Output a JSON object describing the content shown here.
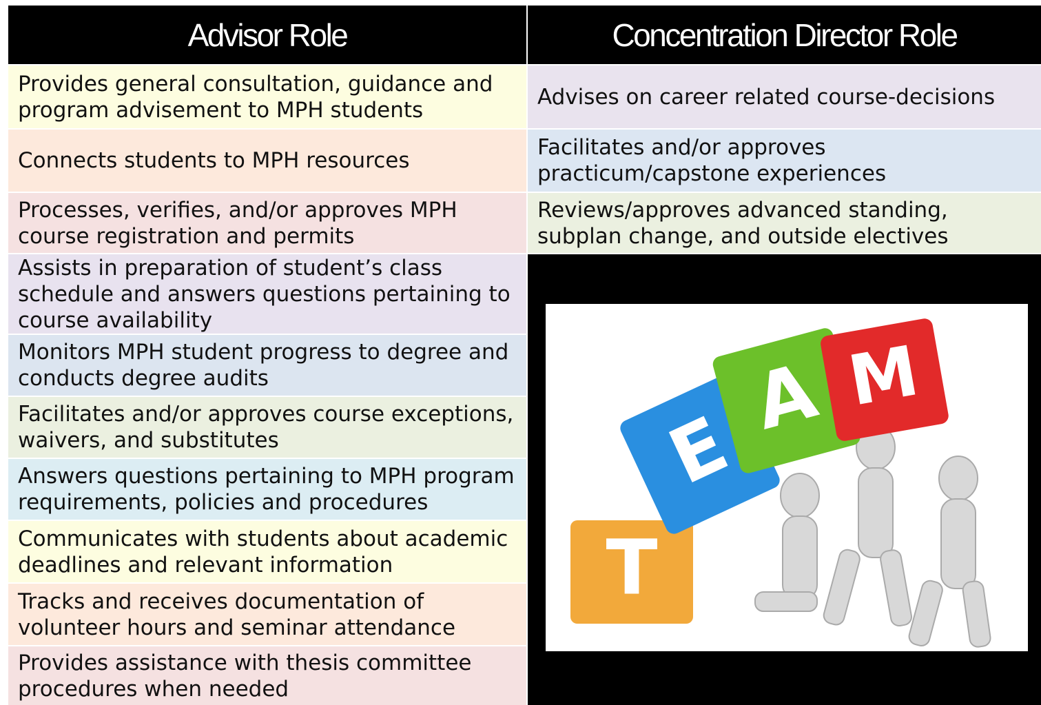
{
  "header": {
    "left": "Advisor Role",
    "right": "Concentration Director Role"
  },
  "table": {
    "left_rows": [
      "Provides general consultation, guidance and program advisement to MPH students",
      "Connects students to MPH resources",
      "Processes, verifies, and/or approves MPH course registration and permits",
      "Assists in preparation of student’s class schedule and answers questions pertaining to course availability",
      "Monitors MPH student progress to degree and conducts degree audits",
      "Facilitates and/or approves course exceptions, waivers, and substitutes",
      "Answers questions pertaining to MPH program requirements, policies and procedures",
      "Communicates with students about academic deadlines and relevant information",
      "Tracks and receives documentation of volunteer hours and seminar attendance",
      "Provides assistance with thesis committee procedures when needed"
    ],
    "right_rows": [
      "Advises on career related course-decisions",
      "Facilitates and/or approves practicum/capstone experiences",
      "Reviews/approves advanced standing, subplan change, and outside electives"
    ]
  },
  "image": {
    "letters": [
      "T",
      "E",
      "A",
      "M"
    ]
  }
}
